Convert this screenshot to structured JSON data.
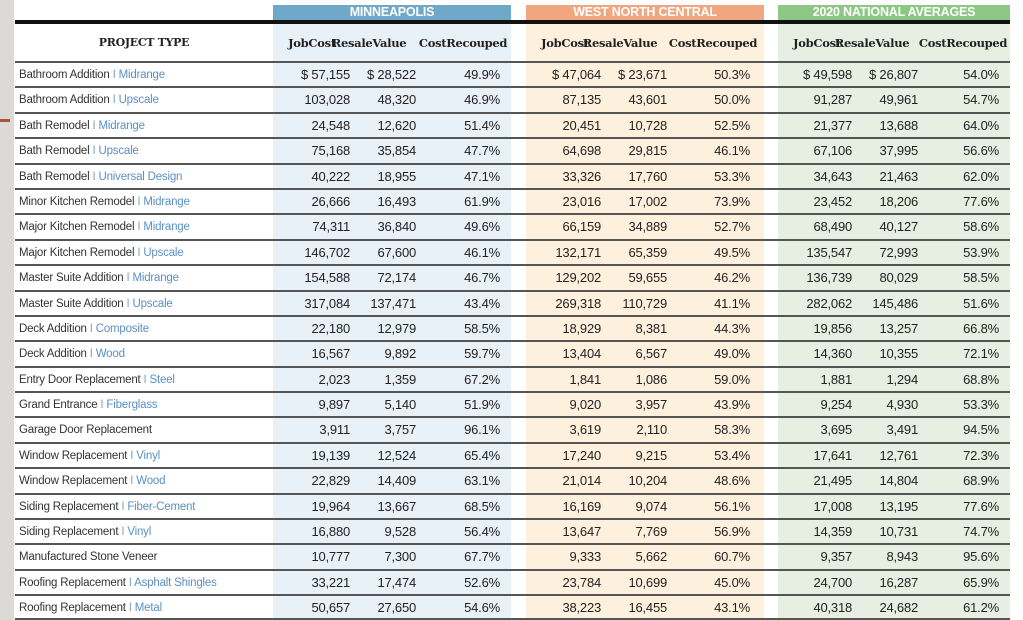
{
  "table": {
    "project_type_header": "PROJECT TYPE",
    "groups": [
      {
        "name": "MINNEAPOLIS",
        "color": "#6fa8c8"
      },
      {
        "name": "WEST NORTH CENTRAL",
        "color": "#f0a67e"
      },
      {
        "name": "2020 NATIONAL AVERAGES",
        "color": "#8cc784"
      }
    ],
    "column_headers": [
      {
        "line1": "Job",
        "line2": "Cost"
      },
      {
        "line1": "Resale",
        "line2": "Value"
      },
      {
        "line1": "Cost",
        "line2": "Recouped"
      }
    ],
    "separator": "I",
    "rows": [
      {
        "project": "Bathroom Addition",
        "variant": "Midrange",
        "mpls": [
          "$ 57,155",
          "$ 28,522",
          "49.9%"
        ],
        "wnc": [
          "$ 47,064",
          "$ 23,671",
          "50.3%"
        ],
        "nat": [
          "$ 49,598",
          "$ 26,807",
          "54.0%"
        ]
      },
      {
        "project": "Bathroom Addition",
        "variant": "Upscale",
        "mpls": [
          "103,028",
          "48,320",
          "46.9%"
        ],
        "wnc": [
          "87,135",
          "43,601",
          "50.0%"
        ],
        "nat": [
          "91,287",
          "49,961",
          "54.7%"
        ]
      },
      {
        "project": "Bath Remodel",
        "variant": "Midrange",
        "mpls": [
          "24,548",
          "12,620",
          "51.4%"
        ],
        "wnc": [
          "20,451",
          "10,728",
          "52.5%"
        ],
        "nat": [
          "21,377",
          "13,688",
          "64.0%"
        ]
      },
      {
        "project": "Bath Remodel",
        "variant": "Upscale",
        "mpls": [
          "75,168",
          "35,854",
          "47.7%"
        ],
        "wnc": [
          "64,698",
          "29,815",
          "46.1%"
        ],
        "nat": [
          "67,106",
          "37,995",
          "56.6%"
        ]
      },
      {
        "project": "Bath Remodel",
        "variant": "Universal Design",
        "mpls": [
          "40,222",
          "18,955",
          "47.1%"
        ],
        "wnc": [
          "33,326",
          "17,760",
          "53.3%"
        ],
        "nat": [
          "34,643",
          "21,463",
          "62.0%"
        ]
      },
      {
        "project": "Minor Kitchen Remodel",
        "variant": "Midrange",
        "mpls": [
          "26,666",
          "16,493",
          "61.9%"
        ],
        "wnc": [
          "23,016",
          "17,002",
          "73.9%"
        ],
        "nat": [
          "23,452",
          "18,206",
          "77.6%"
        ]
      },
      {
        "project": "Major Kitchen Remodel",
        "variant": "Midrange",
        "mpls": [
          "74,311",
          "36,840",
          "49.6%"
        ],
        "wnc": [
          "66,159",
          "34,889",
          "52.7%"
        ],
        "nat": [
          "68,490",
          "40,127",
          "58.6%"
        ]
      },
      {
        "project": "Major Kitchen Remodel",
        "variant": "Upscale",
        "mpls": [
          "146,702",
          "67,600",
          "46.1%"
        ],
        "wnc": [
          "132,171",
          "65,359",
          "49.5%"
        ],
        "nat": [
          "135,547",
          "72,993",
          "53.9%"
        ]
      },
      {
        "project": "Master Suite Addition",
        "variant": "Midrange",
        "mpls": [
          "154,588",
          "72,174",
          "46.7%"
        ],
        "wnc": [
          "129,202",
          "59,655",
          "46.2%"
        ],
        "nat": [
          "136,739",
          "80,029",
          "58.5%"
        ]
      },
      {
        "project": "Master Suite Addition",
        "variant": "Upscale",
        "mpls": [
          "317,084",
          "137,471",
          "43.4%"
        ],
        "wnc": [
          "269,318",
          "110,729",
          "41.1%"
        ],
        "nat": [
          "282,062",
          "145,486",
          "51.6%"
        ]
      },
      {
        "project": "Deck Addition",
        "variant": "Composite",
        "mpls": [
          "22,180",
          "12,979",
          "58.5%"
        ],
        "wnc": [
          "18,929",
          "8,381",
          "44.3%"
        ],
        "nat": [
          "19,856",
          "13,257",
          "66.8%"
        ]
      },
      {
        "project": "Deck Addition",
        "variant": "Wood",
        "mpls": [
          "16,567",
          "9,892",
          "59.7%"
        ],
        "wnc": [
          "13,404",
          "6,567",
          "49.0%"
        ],
        "nat": [
          "14,360",
          "10,355",
          "72.1%"
        ]
      },
      {
        "project": "Entry Door Replacement",
        "variant": "Steel",
        "mpls": [
          "2,023",
          "1,359",
          "67.2%"
        ],
        "wnc": [
          "1,841",
          "1,086",
          "59.0%"
        ],
        "nat": [
          "1,881",
          "1,294",
          "68.8%"
        ]
      },
      {
        "project": "Grand Entrance",
        "variant": "Fiberglass",
        "mpls": [
          "9,897",
          "5,140",
          "51.9%"
        ],
        "wnc": [
          "9,020",
          "3,957",
          "43.9%"
        ],
        "nat": [
          "9,254",
          "4,930",
          "53.3%"
        ]
      },
      {
        "project": "Garage Door Replacement",
        "variant": "",
        "mpls": [
          "3,911",
          "3,757",
          "96.1%"
        ],
        "wnc": [
          "3,619",
          "2,110",
          "58.3%"
        ],
        "nat": [
          "3,695",
          "3,491",
          "94.5%"
        ]
      },
      {
        "project": "Window Replacement",
        "variant": "Vinyl",
        "mpls": [
          "19,139",
          "12,524",
          "65.4%"
        ],
        "wnc": [
          "17,240",
          "9,215",
          "53.4%"
        ],
        "nat": [
          "17,641",
          "12,761",
          "72.3%"
        ]
      },
      {
        "project": "Window Replacement",
        "variant": "Wood",
        "mpls": [
          "22,829",
          "14,409",
          "63.1%"
        ],
        "wnc": [
          "21,014",
          "10,204",
          "48.6%"
        ],
        "nat": [
          "21,495",
          "14,804",
          "68.9%"
        ]
      },
      {
        "project": "Siding Replacement",
        "variant": "Fiber-Cement",
        "mpls": [
          "19,964",
          "13,667",
          "68.5%"
        ],
        "wnc": [
          "16,169",
          "9,074",
          "56.1%"
        ],
        "nat": [
          "17,008",
          "13,195",
          "77.6%"
        ]
      },
      {
        "project": "Siding Replacement",
        "variant": "Vinyl",
        "mpls": [
          "16,880",
          "9,528",
          "56.4%"
        ],
        "wnc": [
          "13,647",
          "7,769",
          "56.9%"
        ],
        "nat": [
          "14,359",
          "10,731",
          "74.7%"
        ]
      },
      {
        "project": "Manufactured Stone Veneer",
        "variant": "",
        "mpls": [
          "10,777",
          "7,300",
          "67.7%"
        ],
        "wnc": [
          "9,333",
          "5,662",
          "60.7%"
        ],
        "nat": [
          "9,357",
          "8,943",
          "95.6%"
        ]
      },
      {
        "project": "Roofing Replacement",
        "variant": "Asphalt Shingles",
        "mpls": [
          "33,221",
          "17,474",
          "52.6%"
        ],
        "wnc": [
          "23,784",
          "10,699",
          "45.0%"
        ],
        "nat": [
          "24,700",
          "16,287",
          "65.9%"
        ]
      },
      {
        "project": "Roofing Replacement",
        "variant": "Metal",
        "mpls": [
          "50,657",
          "27,650",
          "54.6%"
        ],
        "wnc": [
          "38,223",
          "16,455",
          "43.1%"
        ],
        "nat": [
          "40,318",
          "24,682",
          "61.2%"
        ]
      }
    ]
  }
}
